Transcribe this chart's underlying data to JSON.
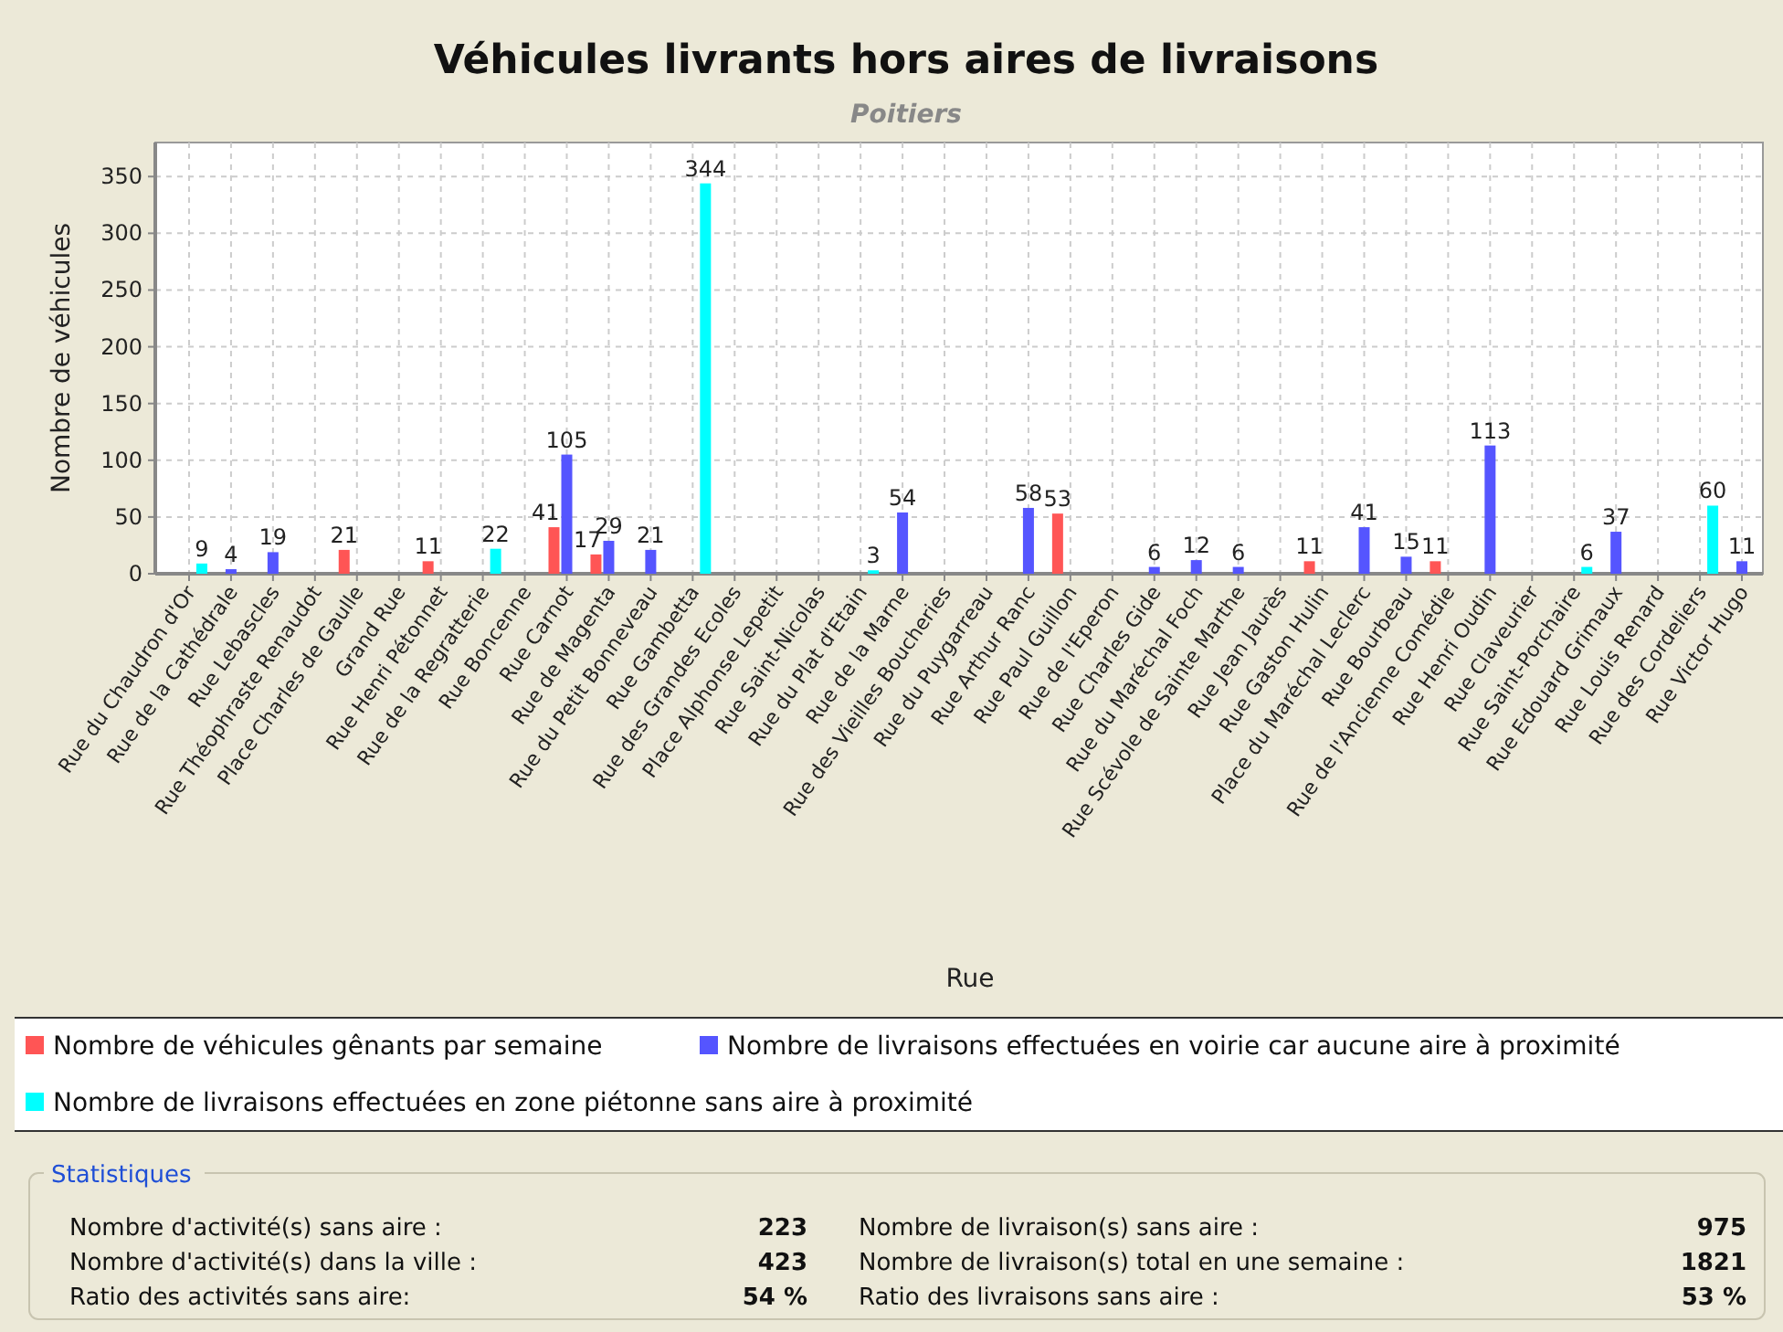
{
  "chart_data": {
    "type": "bar",
    "title": "Véhicules livrants hors aires de livraisons",
    "subtitle": "Poitiers",
    "xlabel": "Rue",
    "ylabel": "Nombre de véhicules",
    "categories": [
      "Rue du Chaudron d'Or",
      "Rue de la Cathédrale",
      "Rue Lebascles",
      "Rue Théophraste Renaudot",
      "Place Charles de Gaulle",
      "Grand Rue",
      "Rue Henri Pétonnet",
      "Rue de la Regratterie",
      "Rue Boncenne",
      "Rue Carnot",
      "Rue de Magenta",
      "Rue du Petit Bonneveau",
      "Rue Gambetta",
      "Rue des Grandes Ecoles",
      "Place Alphonse Lepetit",
      "Rue Saint-Nicolas",
      "Rue du Plat d'Etain",
      "Rue de la Marne",
      "Rue des Vieilles Boucheries",
      "Rue du Puygarreau",
      "Rue Arthur Ranc",
      "Rue Paul Guillon",
      "Rue de l'Eperon",
      "Rue Charles Gide",
      "Rue du Maréchal Foch",
      "Rue Scévole de Sainte Marthe",
      "Rue Jean Jaurès",
      "Rue Gaston Hulin",
      "Place du Maréchal Leclerc",
      "Rue Bourbeau",
      "Rue de l'Ancienne Comédie",
      "Rue Henri Oudin",
      "Rue Claveurier",
      "Rue Saint-Porchaire",
      "Rue Edouard Grimaux",
      "Rue Louis Renard",
      "Rue des Cordeliers",
      "Rue Victor Hugo"
    ],
    "series": [
      {
        "name": "Nombre de véhicules gênants par semaine",
        "color": "#ff5555",
        "values": [
          null,
          null,
          null,
          null,
          21,
          null,
          11,
          null,
          null,
          41,
          17,
          null,
          null,
          null,
          null,
          null,
          null,
          null,
          null,
          null,
          null,
          53,
          null,
          null,
          null,
          null,
          null,
          11,
          null,
          null,
          11,
          null,
          null,
          null,
          null,
          null,
          null,
          null
        ]
      },
      {
        "name": "Nombre de livraisons effectuées en voirie car aucune aire à proximité",
        "color": "#5555ff",
        "values": [
          null,
          4,
          19,
          null,
          null,
          null,
          null,
          null,
          null,
          105,
          29,
          21,
          null,
          null,
          null,
          null,
          null,
          54,
          null,
          null,
          58,
          null,
          null,
          6,
          12,
          6,
          null,
          null,
          41,
          15,
          null,
          113,
          null,
          null,
          37,
          null,
          null,
          11
        ]
      },
      {
        "name": "Nombre de livraisons effectuées en zone piétonne sans aire à proximité",
        "color": "#00ffff",
        "values": [
          9,
          null,
          null,
          null,
          null,
          null,
          null,
          22,
          null,
          null,
          null,
          null,
          344,
          null,
          null,
          null,
          3,
          null,
          null,
          null,
          null,
          null,
          null,
          null,
          null,
          null,
          null,
          null,
          null,
          null,
          null,
          null,
          null,
          6,
          null,
          null,
          60,
          null
        ]
      }
    ],
    "ylim": [
      0,
      380
    ],
    "yticks": [
      0,
      50,
      100,
      150,
      200,
      250,
      300,
      350
    ],
    "grid": true,
    "legend": "bottom",
    "data_labels": true,
    "annotations": [
      "Statistiques",
      "Nombre d'activité(s) sans aire :",
      "223",
      "Nombre d'activité(s) dans la ville :",
      "423",
      "Ratio des activités sans aire:",
      "54 %",
      "Nombre de livraison(s) sans aire :",
      "975",
      "Nombre de livraison(s) total en une semaine :",
      "1821",
      "Ratio des livraisons sans aire :",
      "53 %"
    ]
  }
}
